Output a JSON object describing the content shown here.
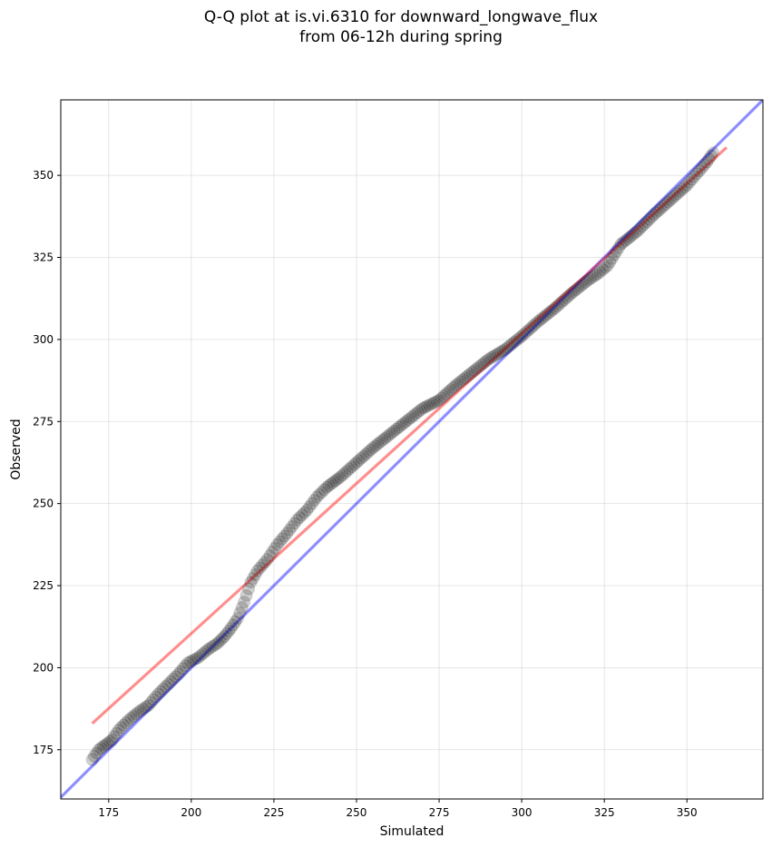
{
  "chart_data": {
    "type": "scatter",
    "title_lines": [
      "Q-Q plot at is.vi.6310 for downward_longwave_flux",
      "from 06-12h during spring"
    ],
    "xlabel": "Simulated",
    "ylabel": "Observed",
    "xlim": [
      160.5,
      373
    ],
    "ylim": [
      160,
      373
    ],
    "xticks": [
      175,
      200,
      225,
      250,
      275,
      300,
      325,
      350
    ],
    "yticks": [
      175,
      200,
      225,
      250,
      275,
      300,
      325,
      350
    ],
    "grid": true,
    "reference_lines": [
      {
        "name": "1:1 line",
        "color": "#0000ff",
        "x": [
          160.5,
          373
        ],
        "y": [
          160.5,
          373
        ]
      },
      {
        "name": "fit line",
        "color": "#ff0000",
        "x": [
          170,
          362
        ],
        "y": [
          183,
          358.5
        ]
      }
    ],
    "quantile_curve": {
      "color": "#000000",
      "x": [
        170,
        172,
        174,
        176,
        178,
        181,
        184,
        187,
        190,
        193,
        196,
        199,
        202,
        205,
        208,
        210,
        212,
        214,
        216,
        218,
        220,
        223,
        226,
        229,
        232,
        235,
        238,
        241,
        245,
        250,
        255,
        260,
        265,
        270,
        275,
        280,
        285,
        290,
        295,
        300,
        305,
        310,
        315,
        320,
        323,
        326,
        330,
        335,
        340,
        345,
        350,
        353,
        356,
        358
      ],
      "y": [
        172,
        175,
        176.5,
        178,
        181,
        184,
        186.5,
        188.5,
        192,
        195,
        198,
        201.5,
        203,
        205.5,
        207.5,
        209.5,
        212,
        215,
        220,
        226,
        229.5,
        233,
        237.5,
        241,
        245,
        248,
        252,
        255,
        258,
        262.5,
        267,
        271,
        275,
        279,
        281.5,
        286,
        290,
        294,
        297,
        301,
        305.5,
        309.5,
        314,
        318,
        320,
        322.5,
        329,
        333,
        338,
        342.5,
        347,
        350.5,
        354,
        357
      ]
    }
  }
}
